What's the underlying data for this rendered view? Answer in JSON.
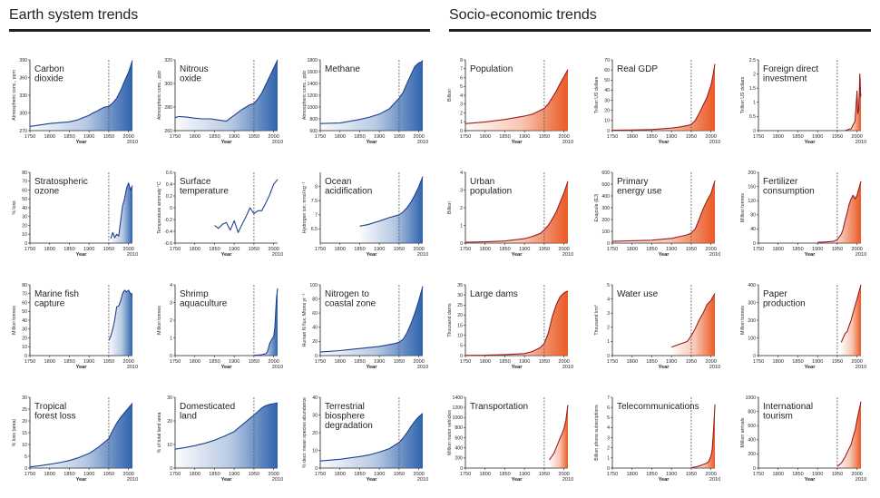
{
  "sections": {
    "left": "Earth system trends",
    "right": "Socio-economic trends"
  },
  "colors": {
    "earth_line": "#1f3f8f",
    "earth_fill": "#2e63ad",
    "socio_line": "#9b1b1e",
    "socio_fill": "#ea5a24",
    "axis": "#231f20",
    "marker": "#555555"
  },
  "marker_year": 1950,
  "common": {
    "xlabel": "Year",
    "end_label": "2010",
    "xticks": [
      1750,
      1800,
      1850,
      1900,
      1950,
      2000
    ]
  },
  "chart_data": [
    {
      "type": "area",
      "theme": "earth",
      "title": "Carbon\ndioxide",
      "ylabel": "Atmospheric conc., ppm",
      "ylim": [
        270,
        390
      ],
      "yticks": [
        270,
        300,
        330,
        360,
        390
      ],
      "x": [
        1750,
        1800,
        1850,
        1870,
        1900,
        1910,
        1920,
        1930,
        1940,
        1950,
        1960,
        1970,
        1980,
        1990,
        2000,
        2010
      ],
      "y": [
        277,
        282,
        285,
        288,
        296,
        300,
        303,
        307,
        310,
        311,
        317,
        325,
        338,
        354,
        369,
        389
      ]
    },
    {
      "type": "area",
      "theme": "earth",
      "title": "Nitrous\noxide",
      "ylabel": "Atmospheric conc., ppb",
      "ylim": [
        260,
        320
      ],
      "yticks": [
        260,
        280,
        300,
        320
      ],
      "x": [
        1750,
        1760,
        1780,
        1800,
        1820,
        1840,
        1860,
        1880,
        1900,
        1920,
        1940,
        1950,
        1960,
        1970,
        1980,
        1990,
        2000,
        2010
      ],
      "y": [
        271,
        272,
        271.5,
        270.5,
        270,
        270,
        269,
        268,
        273,
        278,
        282,
        283,
        287,
        292,
        299,
        306,
        313,
        323
      ]
    },
    {
      "type": "area",
      "theme": "earth",
      "title": "Methane",
      "ylabel": "Atmospheric conc., ppb",
      "ylim": [
        600,
        1800
      ],
      "yticks": [
        600,
        800,
        1000,
        1200,
        1400,
        1600,
        1800
      ],
      "x": [
        1750,
        1800,
        1850,
        1875,
        1900,
        1925,
        1950,
        1960,
        1970,
        1980,
        1990,
        2000,
        2005,
        2010
      ],
      "y": [
        720,
        730,
        790,
        830,
        880,
        970,
        1150,
        1250,
        1400,
        1550,
        1690,
        1750,
        1760,
        1790
      ]
    },
    {
      "type": "area",
      "theme": "socio",
      "title": "Population",
      "ylabel": "Billion",
      "ylim": [
        0,
        8
      ],
      "yticks": [
        0,
        1,
        2,
        3,
        4,
        5,
        6,
        7,
        8
      ],
      "x": [
        1750,
        1800,
        1850,
        1900,
        1920,
        1940,
        1950,
        1960,
        1970,
        1980,
        1990,
        2000,
        2010
      ],
      "y": [
        0.79,
        0.98,
        1.26,
        1.65,
        1.86,
        2.3,
        2.52,
        3.02,
        3.7,
        4.44,
        5.3,
        6.1,
        6.9
      ]
    },
    {
      "type": "area",
      "theme": "socio",
      "title": "Real GDP",
      "ylabel": "Trillion US dollars",
      "ylim": [
        0,
        70
      ],
      "yticks": [
        0,
        10,
        20,
        30,
        40,
        50,
        60,
        70
      ],
      "x": [
        1750,
        1800,
        1850,
        1900,
        1920,
        1940,
        1950,
        1960,
        1970,
        1980,
        1990,
        2000,
        2005,
        2010
      ],
      "y": [
        0.4,
        0.6,
        1.1,
        2.5,
        3.5,
        5,
        6,
        10,
        17,
        25,
        33,
        45,
        54,
        66
      ]
    },
    {
      "type": "area",
      "theme": "socio",
      "title": "Foreign direct\ninvestment",
      "ylabel": "Trillion US dollars",
      "ylim": [
        0,
        2.5
      ],
      "yticks": [
        0,
        0.5,
        1,
        1.5,
        2,
        2.5
      ],
      "x": [
        1970,
        1975,
        1980,
        1985,
        1990,
        1995,
        2000,
        2002,
        2004,
        2006,
        2007,
        2008,
        2009,
        2010
      ],
      "y": [
        0.01,
        0.02,
        0.05,
        0.06,
        0.2,
        0.33,
        1.4,
        0.6,
        0.7,
        1.4,
        2.0,
        1.8,
        1.2,
        1.3
      ]
    },
    {
      "type": "area",
      "theme": "earth",
      "title": "Stratospheric\nozone",
      "ylabel": "% loss",
      "ylim": [
        0,
        80
      ],
      "yticks": [
        0,
        10,
        20,
        30,
        40,
        50,
        60,
        70,
        80
      ],
      "x": [
        1955,
        1960,
        1965,
        1970,
        1975,
        1980,
        1985,
        1990,
        1995,
        2000,
        2005,
        2010
      ],
      "y": [
        5,
        12,
        6,
        10,
        8,
        25,
        42,
        50,
        62,
        68,
        60,
        65
      ]
    },
    {
      "type": "line",
      "theme": "earth",
      "title": "Surface\ntemperature",
      "ylabel": "Temperature anomaly °C",
      "ylim": [
        -0.6,
        0.6
      ],
      "yticks": [
        -0.6,
        -0.4,
        -0.2,
        0,
        0.2,
        0.4,
        0.6
      ],
      "x": [
        1850,
        1860,
        1870,
        1880,
        1890,
        1900,
        1910,
        1920,
        1930,
        1940,
        1950,
        1960,
        1970,
        1980,
        1990,
        2000,
        2010
      ],
      "y": [
        -0.3,
        -0.35,
        -0.28,
        -0.25,
        -0.38,
        -0.22,
        -0.42,
        -0.28,
        -0.15,
        0.0,
        -0.1,
        -0.05,
        -0.05,
        0.08,
        0.22,
        0.4,
        0.48
      ]
    },
    {
      "type": "area",
      "theme": "earth",
      "title": "Ocean\nacidification",
      "ylabel": "Hydrogen ion, nmol kg⁻¹",
      "ylim": [
        6.0,
        8.5
      ],
      "yticks": [
        6.5,
        7.0,
        7.5,
        8.0
      ],
      "x": [
        1850,
        1870,
        1900,
        1925,
        1950,
        1960,
        1970,
        1980,
        1990,
        2000,
        2010
      ],
      "y": [
        6.6,
        6.65,
        6.78,
        6.9,
        7.0,
        7.1,
        7.25,
        7.45,
        7.7,
        8.0,
        8.35
      ]
    },
    {
      "type": "area",
      "theme": "socio",
      "title": "Urban\npopulation",
      "ylabel": "Billion",
      "ylim": [
        0,
        4
      ],
      "yticks": [
        0,
        1,
        2,
        3,
        4
      ],
      "x": [
        1750,
        1800,
        1850,
        1900,
        1920,
        1940,
        1950,
        1960,
        1970,
        1980,
        1990,
        2000,
        2010
      ],
      "y": [
        0.05,
        0.07,
        0.12,
        0.25,
        0.38,
        0.55,
        0.75,
        1.0,
        1.35,
        1.75,
        2.3,
        2.85,
        3.5
      ]
    },
    {
      "type": "area",
      "theme": "socio",
      "title": "Primary\nenergy use",
      "ylabel": "Exajoule (EJ)",
      "ylim": [
        0,
        600
      ],
      "yticks": [
        0,
        100,
        200,
        300,
        400,
        500,
        600
      ],
      "x": [
        1750,
        1800,
        1850,
        1900,
        1920,
        1940,
        1950,
        1960,
        1970,
        1980,
        1990,
        2000,
        2010
      ],
      "y": [
        15,
        20,
        25,
        40,
        55,
        70,
        85,
        120,
        200,
        290,
        360,
        420,
        530
      ]
    },
    {
      "type": "area",
      "theme": "socio",
      "title": "Fertilizer\nconsumption",
      "ylabel": "Million tonnes",
      "ylim": [
        0,
        200
      ],
      "yticks": [
        0,
        40,
        80,
        120,
        160,
        200
      ],
      "x": [
        1900,
        1920,
        1940,
        1950,
        1960,
        1965,
        1970,
        1975,
        1980,
        1985,
        1990,
        1995,
        2000,
        2005,
        2010
      ],
      "y": [
        2,
        3,
        5,
        10,
        25,
        40,
        65,
        85,
        110,
        125,
        135,
        125,
        135,
        155,
        175
      ]
    },
    {
      "type": "area",
      "theme": "earth",
      "title": "Marine fish\ncapture",
      "ylabel": "Million tonnes",
      "ylim": [
        0,
        80
      ],
      "yticks": [
        0,
        10,
        20,
        30,
        40,
        50,
        60,
        70,
        80
      ],
      "x": [
        1950,
        1955,
        1960,
        1965,
        1970,
        1975,
        1980,
        1985,
        1990,
        1995,
        2000,
        2005,
        2010
      ],
      "y": [
        17,
        22,
        30,
        40,
        55,
        56,
        62,
        70,
        74,
        72,
        74,
        70,
        70
      ]
    },
    {
      "type": "area",
      "theme": "earth",
      "title": "Shrimp\naquaculture",
      "ylabel": "Million tonnes",
      "ylim": [
        0,
        4
      ],
      "yticks": [
        0,
        1,
        2,
        3,
        4
      ],
      "x": [
        1950,
        1960,
        1970,
        1975,
        1980,
        1985,
        1990,
        1995,
        2000,
        2003,
        2005,
        2007,
        2010
      ],
      "y": [
        0.02,
        0.03,
        0.05,
        0.08,
        0.1,
        0.25,
        0.7,
        0.9,
        1.1,
        1.6,
        2.4,
        3.2,
        3.8
      ]
    },
    {
      "type": "area",
      "theme": "earth",
      "title": "Nitrogen to\ncoastal zone",
      "ylabel": "Human N flux, Mtons yr⁻¹",
      "ylim": [
        0,
        100
      ],
      "yticks": [
        0,
        20,
        40,
        60,
        80,
        100
      ],
      "x": [
        1750,
        1800,
        1850,
        1900,
        1920,
        1940,
        1950,
        1960,
        1970,
        1980,
        1990,
        2000,
        2010
      ],
      "y": [
        5,
        7,
        10,
        13,
        15,
        17,
        19,
        23,
        32,
        45,
        60,
        78,
        98
      ]
    },
    {
      "type": "area",
      "theme": "socio",
      "title": "Large dams",
      "ylabel": "Thousand dams",
      "ylim": [
        0,
        35
      ],
      "yticks": [
        0,
        5,
        10,
        15,
        20,
        25,
        30,
        35
      ],
      "x": [
        1750,
        1800,
        1850,
        1900,
        1920,
        1940,
        1950,
        1960,
        1970,
        1980,
        1990,
        2000,
        2005,
        2010
      ],
      "y": [
        0.1,
        0.2,
        0.5,
        1,
        2,
        4,
        6,
        11,
        19,
        25,
        29,
        31,
        31.5,
        32
      ]
    },
    {
      "type": "area",
      "theme": "socio",
      "title": "Water use",
      "ylabel": "Thousand km³",
      "ylim": [
        0,
        5
      ],
      "yticks": [
        0,
        1,
        2,
        3,
        4,
        5
      ],
      "x": [
        1900,
        1920,
        1940,
        1950,
        1960,
        1970,
        1980,
        1990,
        2000,
        2010
      ],
      "y": [
        0.6,
        0.8,
        1.0,
        1.4,
        1.9,
        2.5,
        3.0,
        3.6,
        3.9,
        4.4
      ]
    },
    {
      "type": "area",
      "theme": "socio",
      "title": "Paper\nproduction",
      "ylabel": "Million tonnes",
      "ylim": [
        0,
        400
      ],
      "yticks": [
        0,
        100,
        200,
        300,
        400
      ],
      "x": [
        1960,
        1965,
        1970,
        1975,
        1980,
        1985,
        1990,
        1995,
        2000,
        2005,
        2010
      ],
      "y": [
        75,
        100,
        125,
        135,
        170,
        200,
        240,
        280,
        320,
        360,
        400
      ]
    },
    {
      "type": "area",
      "theme": "earth",
      "title": "Tropical\nforest loss",
      "ylabel": "% loss (area)",
      "ylim": [
        0,
        30
      ],
      "yticks": [
        0,
        5,
        10,
        15,
        20,
        25,
        30
      ],
      "x": [
        1750,
        1775,
        1800,
        1825,
        1850,
        1875,
        1900,
        1925,
        1950,
        1960,
        1970,
        1980,
        1990,
        2000,
        2010
      ],
      "y": [
        0.5,
        1,
        1.6,
        2.3,
        3.2,
        4.5,
        6.2,
        9,
        12.5,
        16,
        19,
        21.5,
        23.5,
        25.5,
        27.5
      ]
    },
    {
      "type": "area",
      "theme": "earth",
      "title": "Domesticated\nland",
      "ylabel": "% of total land area",
      "ylim": [
        0,
        30
      ],
      "yticks": [
        0,
        10,
        20,
        30
      ],
      "x": [
        1750,
        1775,
        1800,
        1825,
        1850,
        1875,
        1900,
        1925,
        1950,
        1960,
        1970,
        1980,
        1990,
        2000,
        2010
      ],
      "y": [
        8,
        8.7,
        9.5,
        10.5,
        11.8,
        13.5,
        15.5,
        19,
        22.5,
        24,
        25.5,
        26.5,
        27,
        27.3,
        27.6
      ]
    },
    {
      "type": "area",
      "theme": "earth",
      "title": "Terrestrial\nbiosphere\ndegradation",
      "ylabel": "% decr. mean species abundance",
      "ylim": [
        0,
        40
      ],
      "yticks": [
        0,
        10,
        20,
        30,
        40
      ],
      "x": [
        1750,
        1800,
        1850,
        1875,
        1900,
        1925,
        1950,
        1960,
        1970,
        1980,
        1990,
        2000,
        2010
      ],
      "y": [
        4,
        5,
        6.5,
        7.5,
        9,
        11,
        14.5,
        17,
        20,
        23.5,
        26.5,
        29,
        31
      ]
    },
    {
      "type": "area",
      "theme": "socio",
      "title": "Transportation",
      "ylabel": "Million motor vehicles",
      "ylim": [
        0,
        1400
      ],
      "yticks": [
        0,
        200,
        400,
        600,
        800,
        1000,
        1200,
        1400
      ],
      "x": [
        1963,
        1970,
        1975,
        1980,
        1985,
        1990,
        1995,
        2000,
        2005,
        2010
      ],
      "y": [
        160,
        240,
        300,
        400,
        490,
        590,
        680,
        780,
        950,
        1250
      ]
    },
    {
      "type": "area",
      "theme": "socio",
      "title": "Telecommunications",
      "ylabel": "Billion phone subscriptions",
      "ylim": [
        0,
        7
      ],
      "yticks": [
        0,
        1,
        2,
        3,
        4,
        5,
        6,
        7
      ],
      "x": [
        1950,
        1960,
        1970,
        1980,
        1990,
        1995,
        2000,
        2003,
        2005,
        2007,
        2009,
        2010
      ],
      "y": [
        0.05,
        0.1,
        0.2,
        0.35,
        0.5,
        0.7,
        1.2,
        1.8,
        2.8,
        4.0,
        5.5,
        6.3
      ]
    },
    {
      "type": "area",
      "theme": "socio",
      "title": "International\ntourism",
      "ylabel": "Million arrivals",
      "ylim": [
        0,
        1000
      ],
      "yticks": [
        0,
        200,
        400,
        600,
        800,
        1000
      ],
      "x": [
        1950,
        1955,
        1960,
        1965,
        1970,
        1975,
        1980,
        1985,
        1990,
        1995,
        2000,
        2005,
        2010
      ],
      "y": [
        25,
        45,
        70,
        110,
        160,
        220,
        280,
        330,
        440,
        530,
        680,
        810,
        940
      ]
    }
  ]
}
